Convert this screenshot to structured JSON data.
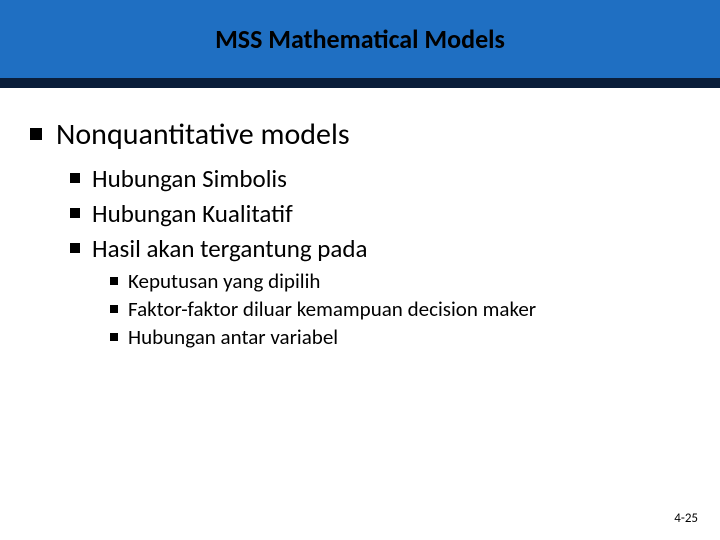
{
  "colors": {
    "banner": "#1f6fc2",
    "accent": "#0a1e3a",
    "background": "#ffffff",
    "text": "#000000"
  },
  "title": "MSS Mathematical Models",
  "bullets": {
    "l1": "Nonquantitative models",
    "l2": [
      "Hubungan Simbolis",
      "Hubungan Kualitatif",
      "Hasil akan tergantung pada"
    ],
    "l3": [
      "Keputusan yang dipilih",
      "Faktor-faktor diluar kemampuan decision maker",
      "Hubungan antar variabel"
    ]
  },
  "page_number": "4-25",
  "typography": {
    "title_fontsize": 26,
    "l1_fontsize": 30,
    "l2_fontsize": 25,
    "l3_fontsize": 21,
    "pagenum_fontsize": 13
  }
}
